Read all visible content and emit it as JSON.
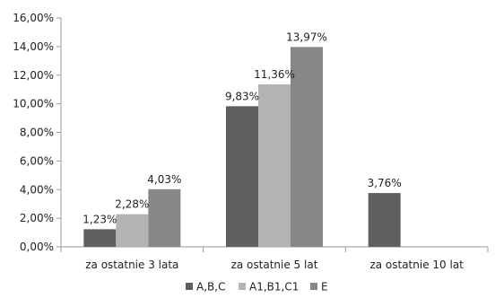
{
  "chart_data": {
    "type": "bar",
    "categories": [
      "za ostatnie 3 lata",
      "za ostatnie 5 lat",
      "za ostatnie 10 lat"
    ],
    "series": [
      {
        "name": "A,B,C",
        "values": [
          1.23,
          9.83,
          3.76
        ],
        "labels": [
          "1,23%",
          "9,83%",
          "3,76%"
        ],
        "color": "#5f5f5f"
      },
      {
        "name": "A1,B1,C1",
        "values": [
          2.28,
          11.36,
          null
        ],
        "labels": [
          "2,28%",
          "11,36%",
          ""
        ],
        "color": "#b3b3b3"
      },
      {
        "name": "E",
        "values": [
          4.03,
          13.97,
          null
        ],
        "labels": [
          "4,03%",
          "13,97%",
          ""
        ],
        "color": "#878787"
      }
    ],
    "yticks": [
      0,
      2,
      4,
      6,
      8,
      10,
      12,
      14,
      16
    ],
    "ytick_labels": [
      "0,00%",
      "2,00%",
      "4,00%",
      "6,00%",
      "8,00%",
      "10,00%",
      "12,00%",
      "14,00%",
      "16,00%"
    ],
    "ylim": [
      0,
      16
    ],
    "grid": false,
    "legend_position": "bottom"
  }
}
